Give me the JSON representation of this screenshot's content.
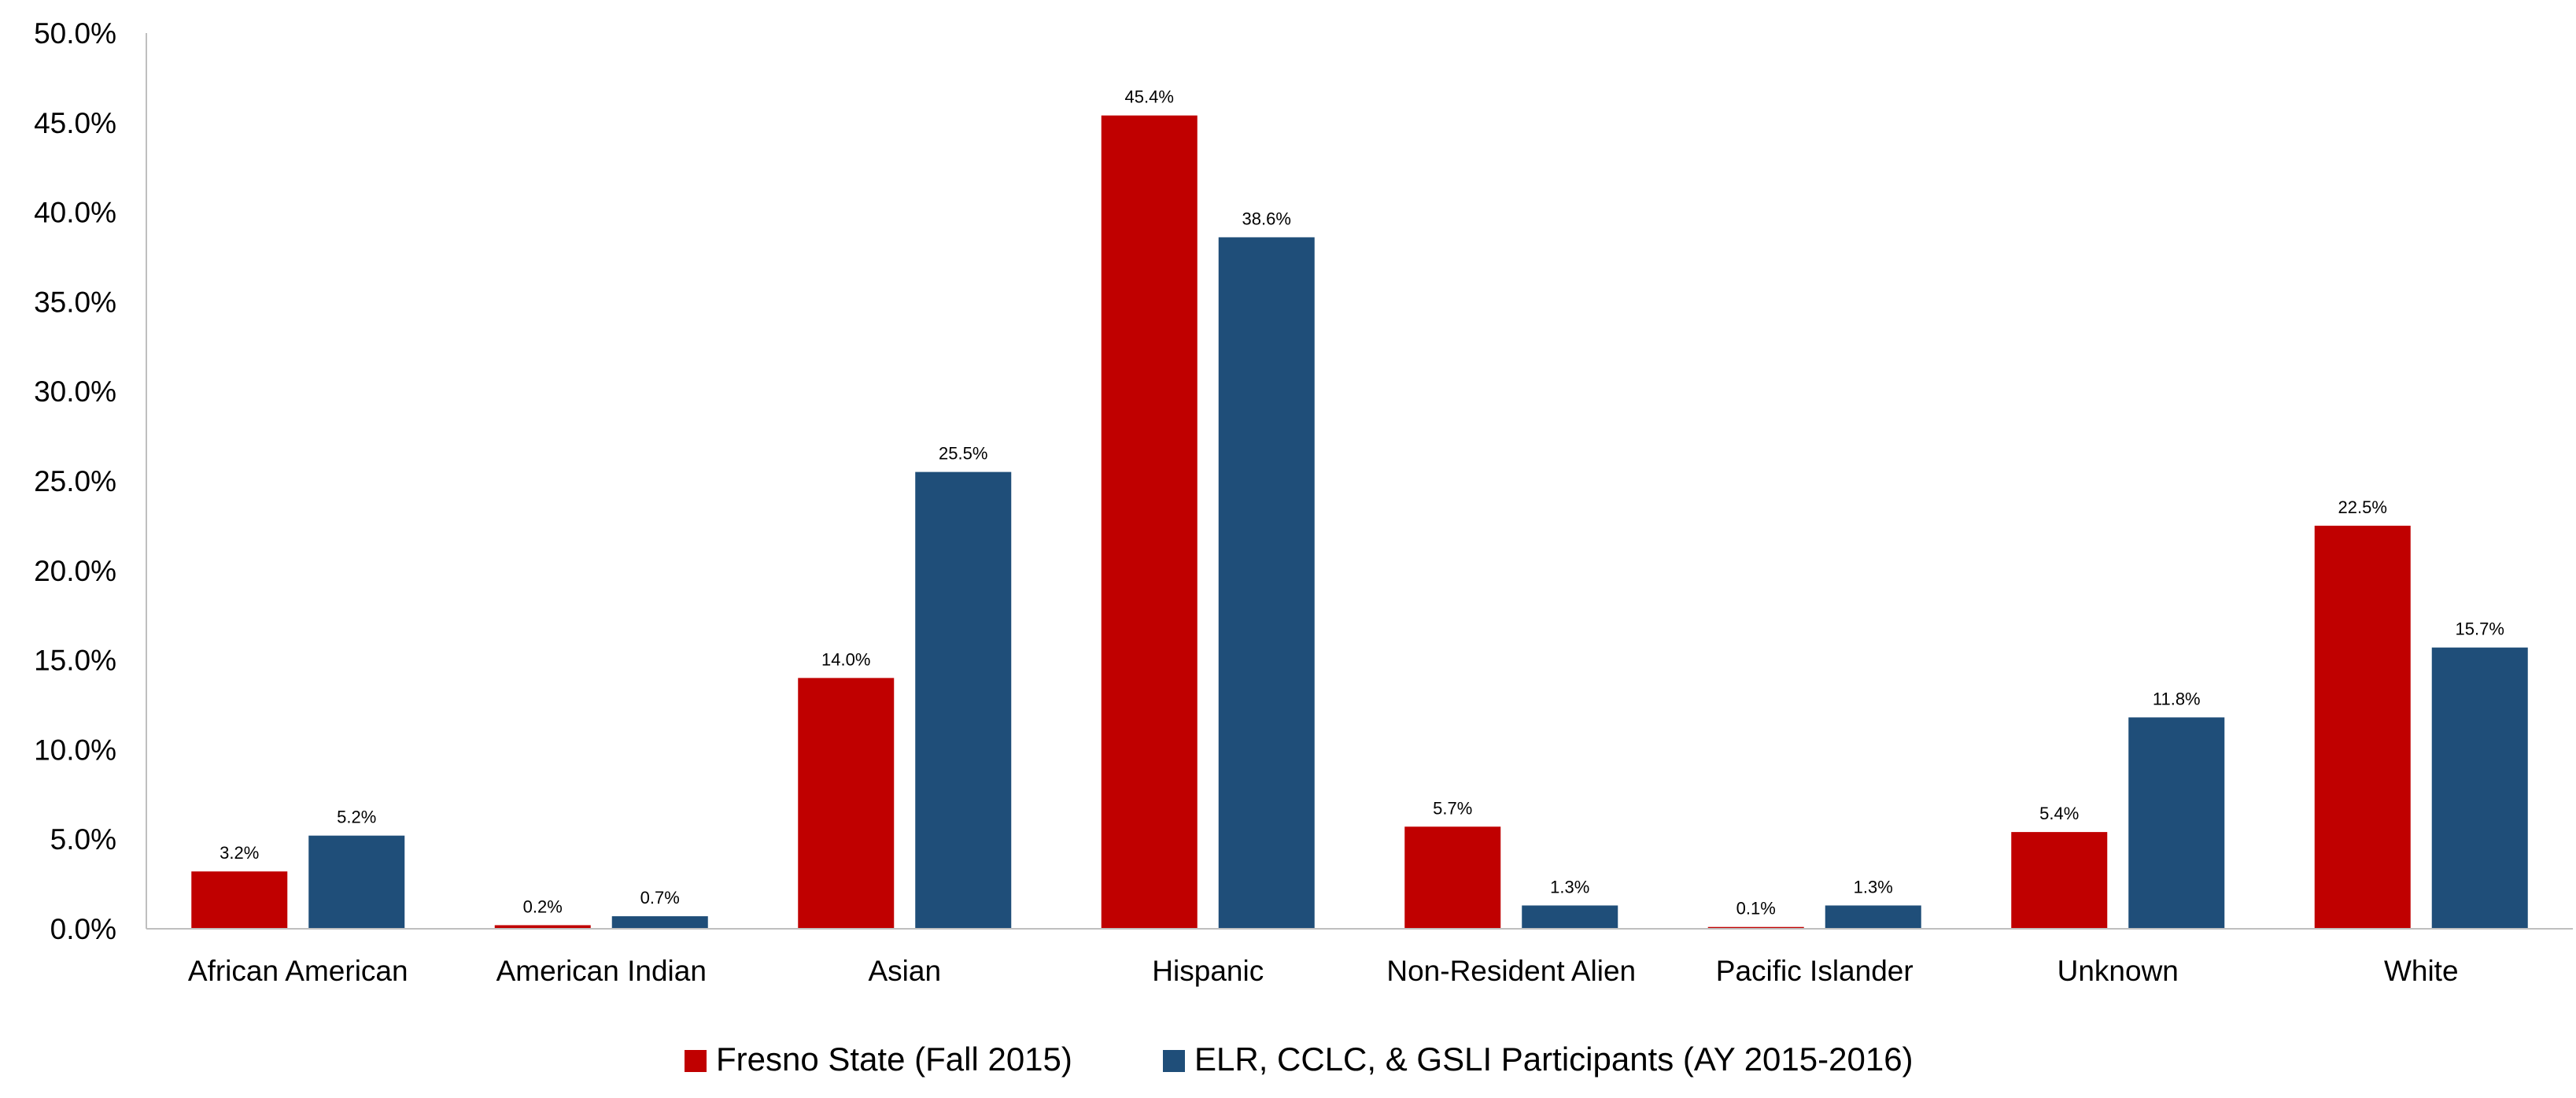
{
  "chart_data": {
    "type": "bar",
    "title": "",
    "xlabel": "",
    "ylabel": "",
    "ylim": [
      0,
      50
    ],
    "y_tick_step": 5,
    "y_tick_labels": [
      "0.0%",
      "5.0%",
      "10.0%",
      "15.0%",
      "20.0%",
      "25.0%",
      "30.0%",
      "35.0%",
      "40.0%",
      "45.0%",
      "50.0%"
    ],
    "grid": false,
    "legend_position": "bottom-center",
    "categories": [
      "African American",
      "American Indian",
      "Asian",
      "Hispanic",
      "Non-Resident Alien",
      "Pacific Islander",
      "Unknown",
      "White"
    ],
    "series": [
      {
        "name": "Fresno State (Fall 2015)",
        "color": "#C00000",
        "values": [
          3.2,
          0.2,
          14.0,
          45.4,
          5.7,
          0.1,
          5.4,
          22.5
        ],
        "labels": [
          "3.2%",
          "0.2%",
          "14.0%",
          "45.4%",
          "5.7%",
          "0.1%",
          "5.4%",
          "22.5%"
        ]
      },
      {
        "name": "ELR, CCLC, & GSLI Participants (AY 2015-2016)",
        "color": "#1F4E79",
        "values": [
          5.2,
          0.7,
          25.5,
          38.6,
          1.3,
          1.3,
          11.8,
          15.7
        ],
        "labels": [
          "5.2%",
          "0.7%",
          "25.5%",
          "38.6%",
          "1.3%",
          "1.3%",
          "11.8%",
          "15.7%"
        ]
      }
    ]
  }
}
